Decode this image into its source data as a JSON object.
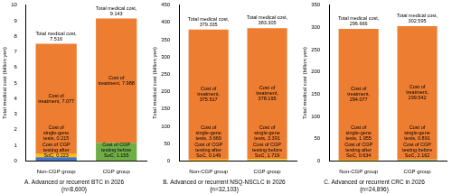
{
  "chart_data": [
    {
      "type": "bar",
      "stacked": true,
      "grid": false,
      "data_labels": true,
      "title": "A. Advanced or recurrent BTC in 2026",
      "subtitle": "(n=8,600)",
      "y_label": "Total medical cost (billion yen)",
      "categories": [
        "Non-CGP group",
        "CGP group"
      ],
      "ylim": [
        0,
        10
      ],
      "yticks": [
        0,
        1,
        2,
        3,
        4,
        5,
        6,
        7,
        8,
        9,
        10
      ],
      "totals": [
        7.516,
        9.143
      ],
      "total_labels": [
        "Total medical cost, 7.516",
        "Total medical cost, 9.143"
      ],
      "series": [
        {
          "name": "Cost of CGP testing before SoC",
          "color": "#70ad47",
          "values": [
            null,
            1.155
          ],
          "value_labels": [
            null,
            "Cost of CGP testing before SoC, 1.155"
          ]
        },
        {
          "name": "Cost of CGP testing after SoC",
          "color": "#4472c4",
          "values": [
            0.223,
            null
          ],
          "value_labels": [
            "Cost of CGP testing after SoC, 0.223",
            null
          ]
        },
        {
          "name": "Cost of single-gene tests",
          "color": "#ffc000",
          "values": [
            0.215,
            null
          ],
          "value_labels": [
            "Cost of single-gene tests, 0.215",
            null
          ]
        },
        {
          "name": "Cost of treatment",
          "color": "#ed7d31",
          "values": [
            7.077,
            7.988
          ],
          "value_labels": [
            "Cost of treatment, 7.077",
            "Cost of treatment, 7.988"
          ]
        }
      ]
    },
    {
      "type": "bar",
      "stacked": true,
      "grid": false,
      "data_labels": true,
      "title": "B. Advanced or recurrent NSQ-NSCLC in 2026",
      "subtitle": "(n=32,103)",
      "y_label": "Total medical cost (billion yen)",
      "categories": [
        "Non-CGP group",
        "CGP group"
      ],
      "ylim": [
        0,
        450
      ],
      "yticks": [
        0,
        50,
        100,
        150,
        200,
        250,
        300,
        350,
        400,
        450
      ],
      "totals": [
        379.335,
        383.305
      ],
      "total_labels": [
        "Total medical cost, 379.335",
        "Total medical cost, 383.305"
      ],
      "series": [
        {
          "name": "Cost of CGP testing before SoC",
          "color": "#70ad47",
          "values": [
            null,
            1.719
          ],
          "value_labels": [
            null,
            "Cost of CGP testing before SoC, 1.719"
          ]
        },
        {
          "name": "Cost of CGP testing after SoC",
          "color": "#4472c4",
          "values": [
            0.149,
            null
          ],
          "value_labels": [
            "Cost of CGP testing after SoC, 0.149",
            null
          ]
        },
        {
          "name": "Cost of single-gene tests",
          "color": "#ffc000",
          "values": [
            3.669,
            3.391
          ],
          "value_labels": [
            "Cost of single-gene tests, 3.669",
            "Cost of single-gene tests, 3.391"
          ]
        },
        {
          "name": "Cost of treatment",
          "color": "#ed7d31",
          "values": [
            375.517,
            378.195
          ],
          "value_labels": [
            "Cost of treatment, 375.517",
            "Cost of treatment, 378.195"
          ]
        }
      ]
    },
    {
      "type": "bar",
      "stacked": true,
      "grid": false,
      "data_labels": true,
      "title": "C. Advanced or recurrent CRC in 2026",
      "subtitle": "(n=24,896)",
      "y_label": "Total medical cost (billion yen)",
      "categories": [
        "Non-CGP group",
        "CGP group"
      ],
      "ylim": [
        0,
        350
      ],
      "yticks": [
        0,
        50,
        100,
        150,
        200,
        250,
        300,
        350
      ],
      "totals": [
        296.666,
        302.595
      ],
      "total_labels": [
        "Total medical cost, 296.666",
        "Total medical cost, 302.595"
      ],
      "series": [
        {
          "name": "Cost of CGP testing before SoC",
          "color": "#70ad47",
          "values": [
            null,
            2.162
          ],
          "value_labels": [
            null,
            "Cost of CGP testing before SoC, 2.162"
          ]
        },
        {
          "name": "Cost of CGP testing after SoC",
          "color": "#4472c4",
          "values": [
            0.634,
            null
          ],
          "value_labels": [
            "Cost of CGP testing after SoC, 0.634",
            null
          ]
        },
        {
          "name": "Cost of single-gene tests",
          "color": "#ffc000",
          "values": [
            1.955,
            0.891
          ],
          "value_labels": [
            "Cost of single-gene tests, 1.955",
            "Cost of single-gene tests, 0.891"
          ]
        },
        {
          "name": "Cost of treatment",
          "color": "#ed7d31",
          "values": [
            294.077,
            299.542
          ],
          "value_labels": [
            "Cost of treatment, 294.077",
            "Cost of treatment, 299.542"
          ]
        }
      ]
    }
  ]
}
